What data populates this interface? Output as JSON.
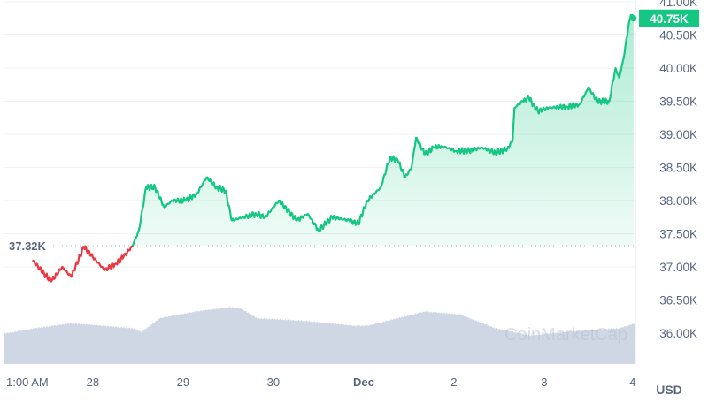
{
  "chart_data": {
    "type": "line",
    "title": "",
    "currency_label": "USD",
    "baseline_value": 37320,
    "baseline_label": "37.32K",
    "current_value": 40750,
    "current_label": "40.75K",
    "ylim": [
      35500,
      41000
    ],
    "y_ticks": [
      {
        "value": 36000,
        "label": "36.00K"
      },
      {
        "value": 36500,
        "label": "36.50K"
      },
      {
        "value": 37000,
        "label": "37.00K"
      },
      {
        "value": 37500,
        "label": "37.50K"
      },
      {
        "value": 38000,
        "label": "38.00K"
      },
      {
        "value": 38500,
        "label": "38.50K"
      },
      {
        "value": 39000,
        "label": "39.00K"
      },
      {
        "value": 39500,
        "label": "39.50K"
      },
      {
        "value": 40000,
        "label": "40.00K"
      },
      {
        "value": 40500,
        "label": "40.50K"
      },
      {
        "value": 41000,
        "label": "41.00K"
      }
    ],
    "x_unit": "days since Nov 27 1:00 AM (approx.)",
    "x_ticks": [
      {
        "t": 0,
        "label": "1:00 AM"
      },
      {
        "t": 0.96,
        "label": "28"
      },
      {
        "t": 1.96,
        "label": "29"
      },
      {
        "t": 2.96,
        "label": "30"
      },
      {
        "t": 3.96,
        "label": "Dec"
      },
      {
        "t": 4.96,
        "label": "2"
      },
      {
        "t": 5.96,
        "label": "3"
      },
      {
        "t": 6.94,
        "label": "4"
      }
    ],
    "series": [
      {
        "name": "Price",
        "points": [
          [
            0.29,
            37100
          ],
          [
            0.42,
            36900
          ],
          [
            0.5,
            36780
          ],
          [
            0.62,
            37000
          ],
          [
            0.72,
            36850
          ],
          [
            0.86,
            37300
          ],
          [
            0.96,
            37150
          ],
          [
            1.09,
            36950
          ],
          [
            1.21,
            37050
          ],
          [
            1.3,
            37150
          ],
          [
            1.4,
            37320
          ],
          [
            1.47,
            37550
          ],
          [
            1.55,
            38200
          ],
          [
            1.65,
            38200
          ],
          [
            1.75,
            37900
          ],
          [
            1.84,
            38000
          ],
          [
            1.99,
            38000
          ],
          [
            2.11,
            38100
          ],
          [
            2.22,
            38350
          ],
          [
            2.33,
            38200
          ],
          [
            2.43,
            38150
          ],
          [
            2.5,
            37700
          ],
          [
            2.63,
            37750
          ],
          [
            2.77,
            37800
          ],
          [
            2.87,
            37750
          ],
          [
            3.02,
            38000
          ],
          [
            3.12,
            37850
          ],
          [
            3.22,
            37700
          ],
          [
            3.34,
            37800
          ],
          [
            3.46,
            37550
          ],
          [
            3.61,
            37750
          ],
          [
            3.8,
            37700
          ],
          [
            3.9,
            37650
          ],
          [
            4.0,
            38000
          ],
          [
            4.15,
            38200
          ],
          [
            4.25,
            38650
          ],
          [
            4.34,
            38600
          ],
          [
            4.42,
            38350
          ],
          [
            4.49,
            38500
          ],
          [
            4.54,
            38950
          ],
          [
            4.64,
            38700
          ],
          [
            4.74,
            38800
          ],
          [
            4.83,
            38820
          ],
          [
            4.98,
            38750
          ],
          [
            5.13,
            38750
          ],
          [
            5.27,
            38800
          ],
          [
            5.42,
            38720
          ],
          [
            5.55,
            38780
          ],
          [
            5.61,
            38900
          ],
          [
            5.63,
            39400
          ],
          [
            5.72,
            39500
          ],
          [
            5.79,
            39550
          ],
          [
            5.89,
            39350
          ],
          [
            6.01,
            39400
          ],
          [
            6.21,
            39420
          ],
          [
            6.35,
            39450
          ],
          [
            6.45,
            39700
          ],
          [
            6.55,
            39500
          ],
          [
            6.68,
            39500
          ],
          [
            6.75,
            40000
          ],
          [
            6.79,
            39850
          ],
          [
            6.84,
            40150
          ],
          [
            6.89,
            40600
          ],
          [
            6.92,
            40800
          ],
          [
            6.95,
            40750
          ]
        ]
      },
      {
        "name": "Volume (relative)",
        "points": [
          [
            -0.02,
            0.49
          ],
          [
            0.32,
            0.58
          ],
          [
            0.72,
            0.66
          ],
          [
            1.4,
            0.58
          ],
          [
            1.5,
            0.52
          ],
          [
            1.7,
            0.74
          ],
          [
            2.1,
            0.85
          ],
          [
            2.48,
            0.92
          ],
          [
            2.6,
            0.9
          ],
          [
            2.78,
            0.74
          ],
          [
            3.3,
            0.7
          ],
          [
            3.85,
            0.62
          ],
          [
            4.0,
            0.62
          ],
          [
            4.64,
            0.85
          ],
          [
            5.03,
            0.8
          ],
          [
            5.42,
            0.58
          ],
          [
            5.81,
            0.46
          ],
          [
            6.2,
            0.52
          ],
          [
            6.79,
            0.58
          ],
          [
            6.97,
            0.66
          ]
        ]
      }
    ],
    "colors": {
      "up": "#16c784",
      "down": "#ea3943",
      "volume": "#cfd6e4",
      "grid": "#eff2f5",
      "text": "#58667e"
    },
    "watermark": "CoinMarketCap"
  }
}
